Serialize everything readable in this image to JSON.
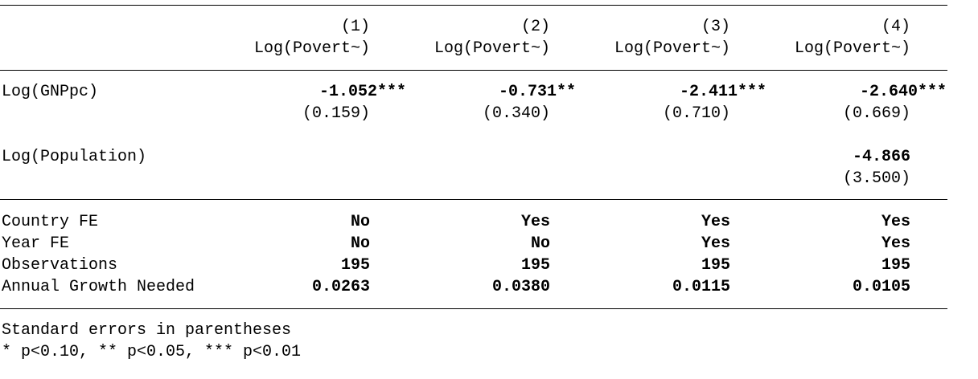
{
  "table": {
    "columns": [
      {
        "number": "(1)",
        "dep_var": "Log(Povert~)"
      },
      {
        "number": "(2)",
        "dep_var": "Log(Povert~)"
      },
      {
        "number": "(3)",
        "dep_var": "Log(Povert~)"
      },
      {
        "number": "(4)",
        "dep_var": "Log(Povert~)"
      }
    ],
    "coefficients": [
      {
        "label": "Log(GNPpc)",
        "estimates": [
          {
            "coef": "-1.052***",
            "se": "(0.159)"
          },
          {
            "coef": "-0.731**",
            "se": "(0.340)"
          },
          {
            "coef": "-2.411***",
            "se": "(0.710)"
          },
          {
            "coef": "-2.640***",
            "se": "(0.669)"
          }
        ]
      },
      {
        "label": "Log(Population)",
        "estimates": [
          {
            "coef": "",
            "se": ""
          },
          {
            "coef": "",
            "se": ""
          },
          {
            "coef": "",
            "se": ""
          },
          {
            "coef": "-4.866",
            "se": "(3.500)"
          }
        ]
      }
    ],
    "stats": [
      {
        "label": "Country FE",
        "values": [
          "No",
          "Yes",
          "Yes",
          "Yes"
        ]
      },
      {
        "label": "Year FE",
        "values": [
          "No",
          "No",
          "Yes",
          "Yes"
        ]
      },
      {
        "label": "Observations",
        "values": [
          "195",
          "195",
          "195",
          "195"
        ]
      },
      {
        "label": "Annual Growth Needed",
        "values": [
          "0.0263",
          "0.0380",
          "0.0115",
          "0.0105"
        ]
      }
    ]
  },
  "notes": [
    "Standard errors in parentheses",
    "* p<0.10, ** p<0.05, *** p<0.01"
  ]
}
